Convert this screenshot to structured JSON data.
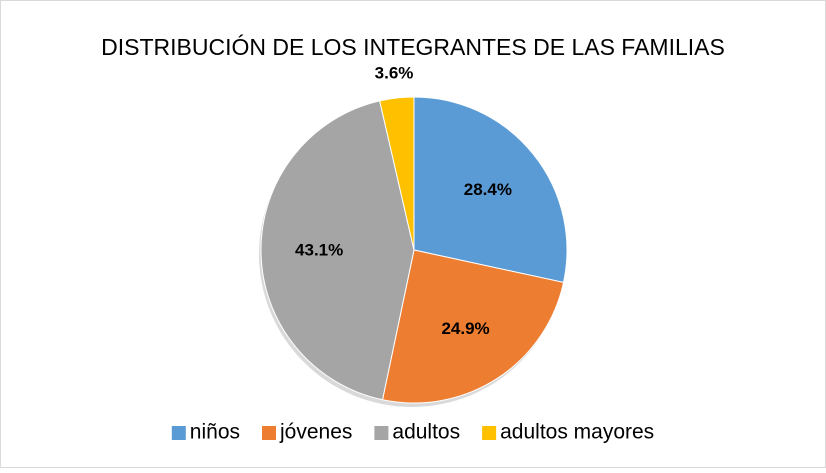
{
  "chart_data": {
    "type": "pie",
    "title": "DISTRIBUCIÓN DE LOS INTEGRANTES DE LAS FAMILIAS",
    "categories": [
      "niños",
      "jóvenes",
      "adultos",
      "adultos mayores"
    ],
    "values": [
      28.4,
      24.9,
      43.1,
      3.6
    ],
    "value_labels": [
      "28.4%",
      "24.9%",
      "43.1%",
      "3.6%"
    ],
    "colors": [
      "#5b9bd5",
      "#ed7d31",
      "#a5a5a5",
      "#ffc000"
    ],
    "legend": "bottom"
  }
}
